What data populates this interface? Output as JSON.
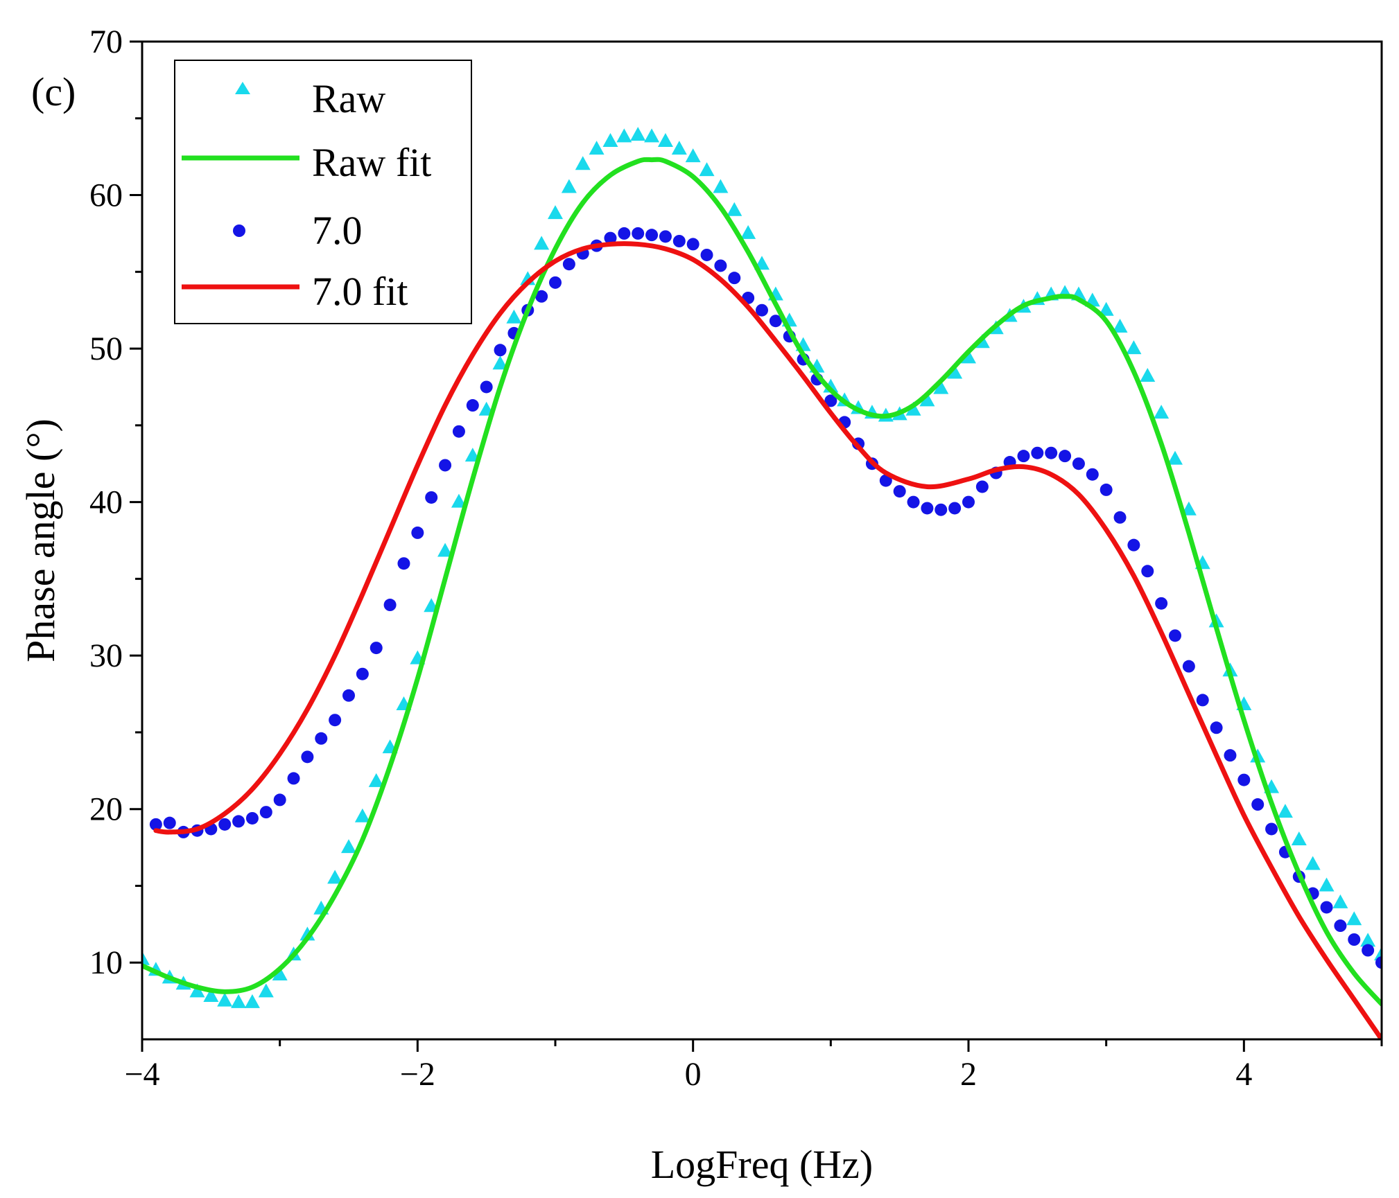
{
  "chart_data": {
    "type": "scatter",
    "panel_label": "(c)",
    "xlabel": "LogFreq (Hz)",
    "ylabel": "Phase angle (°)",
    "xlim": [
      -4,
      5
    ],
    "ylim": [
      5,
      70
    ],
    "xticks": [
      -4,
      -2,
      0,
      2,
      4
    ],
    "xtick_labels": [
      "−4",
      "−2",
      "0",
      "2",
      "4"
    ],
    "yticks": [
      10,
      20,
      30,
      40,
      50,
      60,
      70
    ],
    "ytick_labels": [
      "10",
      "20",
      "30",
      "40",
      "50",
      "60",
      "70"
    ],
    "legend_position": "top-left",
    "series": [
      {
        "name": "Raw",
        "style": "triangle-markers",
        "color": "#19d9ec",
        "x": [
          -4.0,
          -3.9,
          -3.8,
          -3.7,
          -3.6,
          -3.5,
          -3.4,
          -3.3,
          -3.2,
          -3.1,
          -3.0,
          -2.9,
          -2.8,
          -2.7,
          -2.6,
          -2.5,
          -2.4,
          -2.3,
          -2.2,
          -2.1,
          -2.0,
          -1.9,
          -1.8,
          -1.7,
          -1.6,
          -1.5,
          -1.4,
          -1.3,
          -1.2,
          -1.1,
          -1.0,
          -0.9,
          -0.8,
          -0.7,
          -0.6,
          -0.5,
          -0.4,
          -0.3,
          -0.2,
          -0.1,
          0.0,
          0.1,
          0.2,
          0.3,
          0.4,
          0.5,
          0.6,
          0.7,
          0.8,
          0.9,
          1.0,
          1.1,
          1.2,
          1.3,
          1.4,
          1.5,
          1.6,
          1.7,
          1.8,
          1.9,
          2.0,
          2.1,
          2.2,
          2.3,
          2.4,
          2.5,
          2.6,
          2.7,
          2.8,
          2.9,
          3.0,
          3.1,
          3.2,
          3.3,
          3.4,
          3.5,
          3.6,
          3.7,
          3.8,
          3.9,
          4.0,
          4.1,
          4.2,
          4.3,
          4.4,
          4.5,
          4.6,
          4.7,
          4.8,
          4.9,
          5.0
        ],
        "y": [
          10.2,
          9.5,
          9.0,
          8.6,
          8.1,
          7.8,
          7.5,
          7.4,
          7.4,
          8.1,
          9.2,
          10.5,
          11.8,
          13.5,
          15.5,
          17.5,
          19.5,
          21.8,
          24.0,
          26.8,
          29.8,
          33.2,
          36.8,
          40.0,
          43.0,
          46.0,
          49.0,
          52.0,
          54.5,
          56.8,
          58.8,
          60.5,
          62.0,
          63.0,
          63.5,
          63.8,
          63.9,
          63.8,
          63.5,
          63.0,
          62.5,
          61.6,
          60.5,
          59.0,
          57.5,
          55.5,
          53.5,
          51.8,
          50.2,
          48.8,
          47.5,
          46.6,
          46.1,
          45.8,
          45.6,
          45.7,
          46.0,
          46.6,
          47.4,
          48.4,
          49.4,
          50.4,
          51.3,
          52.1,
          52.7,
          53.2,
          53.5,
          53.6,
          53.5,
          53.1,
          52.5,
          51.4,
          50.0,
          48.2,
          45.8,
          42.8,
          39.5,
          36.0,
          32.2,
          29.0,
          26.8,
          23.4,
          21.4,
          19.8,
          18.0,
          16.4,
          15.0,
          13.9,
          12.8,
          11.4,
          10.5
        ]
      },
      {
        "name": "Raw fit",
        "style": "line",
        "color": "#22e01f",
        "x": [
          -4.0,
          -3.8,
          -3.6,
          -3.4,
          -3.2,
          -3.0,
          -2.8,
          -2.6,
          -2.4,
          -2.2,
          -2.0,
          -1.8,
          -1.6,
          -1.4,
          -1.2,
          -1.0,
          -0.8,
          -0.6,
          -0.4,
          -0.3,
          -0.2,
          0.0,
          0.2,
          0.4,
          0.6,
          0.8,
          1.0,
          1.2,
          1.4,
          1.6,
          1.8,
          2.0,
          2.2,
          2.4,
          2.6,
          2.7,
          2.8,
          3.0,
          3.2,
          3.4,
          3.6,
          3.8,
          4.0,
          4.2,
          4.4,
          4.6,
          4.8,
          5.0
        ],
        "y": [
          9.8,
          9.0,
          8.4,
          8.1,
          8.4,
          9.6,
          11.6,
          14.4,
          18.0,
          22.8,
          28.5,
          35.0,
          41.5,
          47.5,
          52.5,
          56.5,
          59.5,
          61.3,
          62.2,
          62.3,
          62.2,
          61.2,
          59.2,
          56.3,
          52.9,
          49.6,
          47.3,
          46.0,
          45.6,
          46.3,
          47.9,
          49.8,
          51.5,
          52.8,
          53.3,
          53.4,
          53.2,
          51.8,
          48.5,
          43.8,
          38.0,
          31.8,
          25.8,
          20.4,
          15.8,
          12.0,
          9.3,
          7.3
        ]
      },
      {
        "name": "7.0",
        "style": "circle-markers",
        "color": "#1414e6",
        "x": [
          -3.9,
          -3.8,
          -3.7,
          -3.6,
          -3.5,
          -3.4,
          -3.3,
          -3.2,
          -3.1,
          -3.0,
          -2.9,
          -2.8,
          -2.7,
          -2.6,
          -2.5,
          -2.4,
          -2.3,
          -2.2,
          -2.1,
          -2.0,
          -1.9,
          -1.8,
          -1.7,
          -1.6,
          -1.5,
          -1.4,
          -1.3,
          -1.2,
          -1.1,
          -1.0,
          -0.9,
          -0.8,
          -0.7,
          -0.6,
          -0.5,
          -0.4,
          -0.3,
          -0.2,
          -0.1,
          0.0,
          0.1,
          0.2,
          0.3,
          0.4,
          0.5,
          0.6,
          0.7,
          0.8,
          0.9,
          1.0,
          1.1,
          1.2,
          1.3,
          1.4,
          1.5,
          1.6,
          1.7,
          1.8,
          1.9,
          2.0,
          2.1,
          2.2,
          2.3,
          2.4,
          2.5,
          2.6,
          2.7,
          2.8,
          2.9,
          3.0,
          3.1,
          3.2,
          3.3,
          3.4,
          3.5,
          3.6,
          3.7,
          3.8,
          3.9,
          4.0,
          4.1,
          4.2,
          4.3,
          4.4,
          4.5,
          4.6,
          4.7,
          4.8,
          4.9,
          5.0
        ],
        "y": [
          19.0,
          19.1,
          18.5,
          18.6,
          18.7,
          19.0,
          19.2,
          19.4,
          19.8,
          20.6,
          22.0,
          23.4,
          24.6,
          25.8,
          27.4,
          28.8,
          30.5,
          33.3,
          36.0,
          38.0,
          40.3,
          42.4,
          44.6,
          46.3,
          47.5,
          49.9,
          51.0,
          52.5,
          53.4,
          54.3,
          55.5,
          56.2,
          56.7,
          57.2,
          57.5,
          57.5,
          57.4,
          57.3,
          57.0,
          56.8,
          56.1,
          55.4,
          54.6,
          53.3,
          52.5,
          51.8,
          50.8,
          49.3,
          48.0,
          46.6,
          45.2,
          43.8,
          42.5,
          41.4,
          40.7,
          40.0,
          39.6,
          39.5,
          39.6,
          40.0,
          41.0,
          41.9,
          42.6,
          43.0,
          43.2,
          43.2,
          43.0,
          42.5,
          41.8,
          40.8,
          39.0,
          37.2,
          35.5,
          33.4,
          31.3,
          29.3,
          27.1,
          25.3,
          23.5,
          21.9,
          20.3,
          18.7,
          17.2,
          15.6,
          14.5,
          13.6,
          12.4,
          11.5,
          10.8,
          10.0
        ]
      },
      {
        "name": "7.0 fit",
        "style": "line",
        "color": "#ee1111",
        "x": [
          -3.9,
          -3.8,
          -3.6,
          -3.4,
          -3.2,
          -3.0,
          -2.8,
          -2.6,
          -2.4,
          -2.2,
          -2.0,
          -1.8,
          -1.6,
          -1.4,
          -1.2,
          -1.0,
          -0.8,
          -0.6,
          -0.4,
          -0.2,
          0.0,
          0.2,
          0.4,
          0.6,
          0.8,
          1.0,
          1.2,
          1.4,
          1.7,
          2.0,
          2.2,
          2.4,
          2.6,
          2.8,
          3.0,
          3.2,
          3.4,
          3.6,
          3.8,
          4.0,
          4.2,
          4.4,
          4.6,
          4.8,
          5.0
        ],
        "y": [
          18.6,
          18.5,
          18.7,
          19.7,
          21.3,
          23.6,
          26.5,
          30.0,
          34.0,
          38.2,
          42.4,
          46.3,
          49.6,
          52.3,
          54.3,
          55.7,
          56.5,
          56.8,
          56.8,
          56.5,
          55.8,
          54.5,
          52.7,
          50.5,
          48.2,
          45.8,
          43.6,
          41.9,
          41.0,
          41.5,
          42.1,
          42.3,
          41.8,
          40.5,
          38.2,
          35.2,
          31.5,
          27.5,
          23.5,
          19.6,
          16.2,
          13.0,
          10.2,
          7.6,
          5.0
        ]
      }
    ]
  }
}
